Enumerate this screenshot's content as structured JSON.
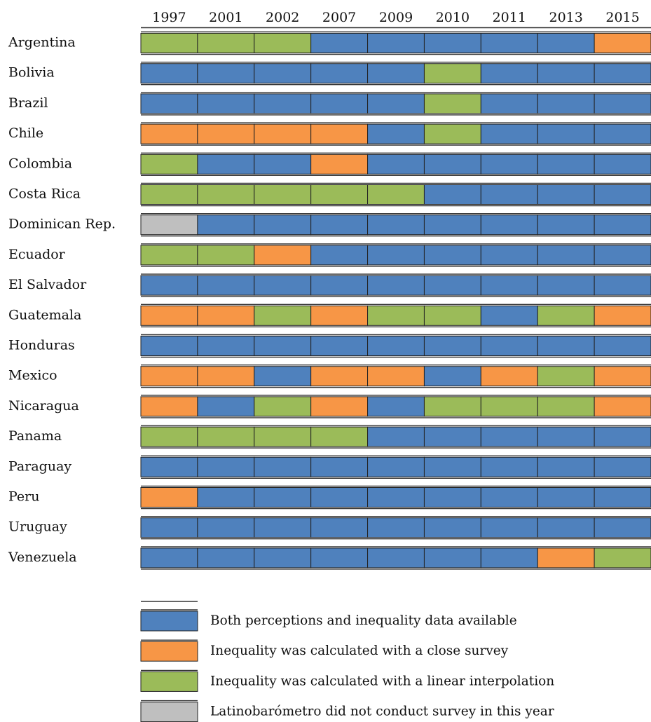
{
  "chart_data": {
    "type": "heatmap",
    "columns": [
      "1997",
      "2001",
      "2002",
      "2007",
      "2009",
      "2010",
      "2011",
      "2013",
      "2015"
    ],
    "rows": [
      {
        "country": "Argentina",
        "cells": [
          "L",
          "L",
          "L",
          "B",
          "B",
          "B",
          "B",
          "B",
          "C"
        ]
      },
      {
        "country": "Bolivia",
        "cells": [
          "B",
          "B",
          "B",
          "B",
          "B",
          "L",
          "B",
          "B",
          "B"
        ]
      },
      {
        "country": "Brazil",
        "cells": [
          "B",
          "B",
          "B",
          "B",
          "B",
          "L",
          "B",
          "B",
          "B"
        ]
      },
      {
        "country": "Chile",
        "cells": [
          "C",
          "C",
          "C",
          "C",
          "B",
          "L",
          "B",
          "B",
          "B"
        ]
      },
      {
        "country": "Colombia",
        "cells": [
          "L",
          "B",
          "B",
          "C",
          "B",
          "B",
          "B",
          "B",
          "B"
        ]
      },
      {
        "country": "Costa Rica",
        "cells": [
          "L",
          "L",
          "L",
          "L",
          "L",
          "B",
          "B",
          "B",
          "B"
        ]
      },
      {
        "country": "Dominican Rep.",
        "cells": [
          "N",
          "B",
          "B",
          "B",
          "B",
          "B",
          "B",
          "B",
          "B"
        ]
      },
      {
        "country": "Ecuador",
        "cells": [
          "L",
          "L",
          "C",
          "B",
          "B",
          "B",
          "B",
          "B",
          "B"
        ]
      },
      {
        "country": "El Salvador",
        "cells": [
          "B",
          "B",
          "B",
          "B",
          "B",
          "B",
          "B",
          "B",
          "B"
        ]
      },
      {
        "country": "Guatemala",
        "cells": [
          "C",
          "C",
          "L",
          "C",
          "L",
          "L",
          "B",
          "L",
          "C"
        ]
      },
      {
        "country": "Honduras",
        "cells": [
          "B",
          "B",
          "B",
          "B",
          "B",
          "B",
          "B",
          "B",
          "B"
        ]
      },
      {
        "country": "Mexico",
        "cells": [
          "C",
          "C",
          "B",
          "C",
          "C",
          "B",
          "C",
          "L",
          "C"
        ]
      },
      {
        "country": "Nicaragua",
        "cells": [
          "C",
          "B",
          "L",
          "C",
          "B",
          "L",
          "L",
          "L",
          "C"
        ]
      },
      {
        "country": "Panama",
        "cells": [
          "L",
          "L",
          "L",
          "L",
          "B",
          "B",
          "B",
          "B",
          "B"
        ]
      },
      {
        "country": "Paraguay",
        "cells": [
          "B",
          "B",
          "B",
          "B",
          "B",
          "B",
          "B",
          "B",
          "B"
        ]
      },
      {
        "country": "Peru",
        "cells": [
          "C",
          "B",
          "B",
          "B",
          "B",
          "B",
          "B",
          "B",
          "B"
        ]
      },
      {
        "country": "Uruguay",
        "cells": [
          "B",
          "B",
          "B",
          "B",
          "B",
          "B",
          "B",
          "B",
          "B"
        ]
      },
      {
        "country": "Venezuela",
        "cells": [
          "B",
          "B",
          "B",
          "B",
          "B",
          "B",
          "B",
          "C",
          "L"
        ]
      }
    ],
    "legend": [
      {
        "key": "B",
        "label": "Both perceptions and inequality data available",
        "color": "#4f81bd"
      },
      {
        "key": "C",
        "label": "Inequality was calculated with a close survey",
        "color": "#f79646"
      },
      {
        "key": "L",
        "label": "Inequality was calculated with a linear interpolation",
        "color": "#9bbb59"
      },
      {
        "key": "N",
        "label": "Latinobarómetro did not conduct survey in this year",
        "color": "#bfbfbf"
      }
    ],
    "legend_placement": "bottom",
    "grid": true
  }
}
